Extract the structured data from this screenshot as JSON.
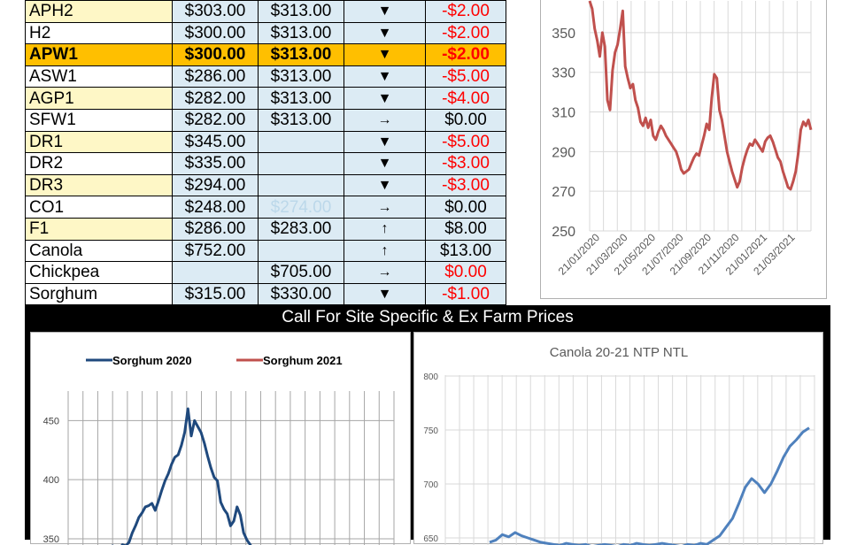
{
  "price_table": [
    {
      "grade": "APH2",
      "col1": "$303.00",
      "col2": "$313.00",
      "trend": "▼",
      "change": "-$2.00",
      "change_red": true,
      "row_style": "yellow"
    },
    {
      "grade": "H2",
      "col1": "$300.00",
      "col2": "$313.00",
      "trend": "▼",
      "change": "-$2.00",
      "change_red": true,
      "row_style": "white"
    },
    {
      "grade": "APW1",
      "col1": "$300.00",
      "col2": "$313.00",
      "trend": "▼",
      "change": "-$2.00",
      "change_red": true,
      "row_style": "highlight"
    },
    {
      "grade": "ASW1",
      "col1": "$286.00",
      "col2": "$313.00",
      "trend": "▼",
      "change": "-$5.00",
      "change_red": true,
      "row_style": "white"
    },
    {
      "grade": "AGP1",
      "col1": "$282.00",
      "col2": "$313.00",
      "trend": "▼",
      "change": "-$4.00",
      "change_red": true,
      "row_style": "yellow"
    },
    {
      "grade": "SFW1",
      "col1": "$282.00",
      "col2": "$313.00",
      "trend": "→",
      "change": "$0.00",
      "change_red": false,
      "row_style": "white"
    },
    {
      "grade": "DR1",
      "col1": "$345.00",
      "col2": "",
      "trend": "▼",
      "change": "-$5.00",
      "change_red": true,
      "row_style": "yellow"
    },
    {
      "grade": "DR2",
      "col1": "$335.00",
      "col2": "",
      "trend": "▼",
      "change": "-$3.00",
      "change_red": true,
      "row_style": "white"
    },
    {
      "grade": "DR3",
      "col1": "$294.00",
      "col2": "",
      "trend": "▼",
      "change": "-$3.00",
      "change_red": true,
      "row_style": "yellow"
    },
    {
      "grade": "CO1",
      "col1": "$248.00",
      "col2": "$274.00",
      "col2_faded": true,
      "trend": "→",
      "change": "$0.00",
      "change_red": false,
      "row_style": "white"
    },
    {
      "grade": "F1",
      "col1": "$286.00",
      "col2": "$283.00",
      "trend": "↑",
      "change": "$8.00",
      "change_red": false,
      "row_style": "yellow"
    },
    {
      "grade": "Canola",
      "col1": "$752.00",
      "col2": "",
      "trend": "↑",
      "change": "$13.00",
      "change_red": false,
      "row_style": "white"
    },
    {
      "grade": "Chickpea",
      "col1": "",
      "col2": "$705.00",
      "trend": "→",
      "change": "$0.00",
      "change_red": true,
      "row_style": "white"
    },
    {
      "grade": "Sorghum",
      "col1": "$315.00",
      "col2": "$330.00",
      "trend": "▼",
      "change": "-$1.00",
      "change_red": true,
      "row_style": "white"
    }
  ],
  "banner": {
    "text": "Call For Site Specific & Ex Farm Prices"
  },
  "chart_data": [
    {
      "type": "line",
      "title": "",
      "x_tick_labels": [
        "21/01/2020",
        "21/03/2020",
        "21/05/2020",
        "21/07/2020",
        "21/09/2020",
        "21/11/2020",
        "21/01/2021",
        "21/03/2021"
      ],
      "y_ticks": [
        250,
        270,
        290,
        310,
        330,
        350
      ],
      "ylim": [
        250,
        366
      ],
      "grid": true,
      "series": [
        {
          "name": "",
          "color": "#c0504d",
          "values": [
            366,
            362,
            352,
            346,
            338,
            350,
            343,
            316,
            311,
            331,
            340,
            344,
            352,
            361,
            333,
            327,
            322,
            324,
            316,
            312,
            305,
            303,
            307,
            302,
            306,
            298,
            296,
            300,
            303,
            301,
            298,
            296,
            294,
            292,
            290,
            286,
            281,
            279,
            280,
            281,
            284,
            287,
            289,
            288,
            293,
            298,
            304,
            301,
            317,
            329,
            327,
            311,
            306,
            298,
            290,
            285,
            280,
            276,
            272,
            275,
            282,
            287,
            291,
            294,
            293,
            296,
            294,
            292,
            290,
            295,
            297,
            298,
            295,
            291,
            287,
            285,
            280,
            276,
            272,
            271,
            275,
            280,
            289,
            301,
            305,
            303,
            306,
            301
          ]
        }
      ]
    },
    {
      "type": "line",
      "title": "",
      "legend": "top",
      "y_ticks": [
        350,
        400,
        450
      ],
      "ylim": [
        335,
        475
      ],
      "grid": true,
      "series": [
        {
          "name": "Sorghum 2020",
          "color": "#1f497d",
          "values": [
            336,
            338,
            337,
            340,
            339,
            343,
            344,
            342,
            341,
            345,
            344,
            347,
            355,
            361,
            368,
            372,
            377,
            378,
            380,
            374,
            382,
            391,
            399,
            405,
            413,
            419,
            421,
            429,
            440,
            460,
            437,
            450,
            445,
            440,
            431,
            420,
            410,
            402,
            399,
            381,
            375,
            371,
            361,
            365,
            377,
            370,
            355,
            349,
            345,
            340,
            337
          ]
        },
        {
          "name": "Sorghum 2021",
          "color": "#c0504d",
          "values": []
        }
      ]
    },
    {
      "type": "line",
      "title": "Canola 20-21 NTP NTL",
      "y_ticks": [
        650,
        700,
        750,
        800
      ],
      "ylim": [
        640,
        800
      ],
      "grid": true,
      "series": [
        {
          "name": "",
          "color": "#4f81bd",
          "values": [
            646,
            648,
            653,
            651,
            655,
            652,
            650,
            648,
            646,
            645,
            644,
            643,
            645,
            644,
            643,
            644,
            642,
            643,
            644,
            643,
            642,
            644,
            643,
            645,
            644,
            643,
            644,
            645,
            644,
            643,
            642,
            644,
            643,
            645,
            644,
            648,
            652,
            660,
            668,
            682,
            697,
            705,
            700,
            692,
            700,
            712,
            725,
            735,
            741,
            748,
            752
          ]
        }
      ]
    }
  ]
}
